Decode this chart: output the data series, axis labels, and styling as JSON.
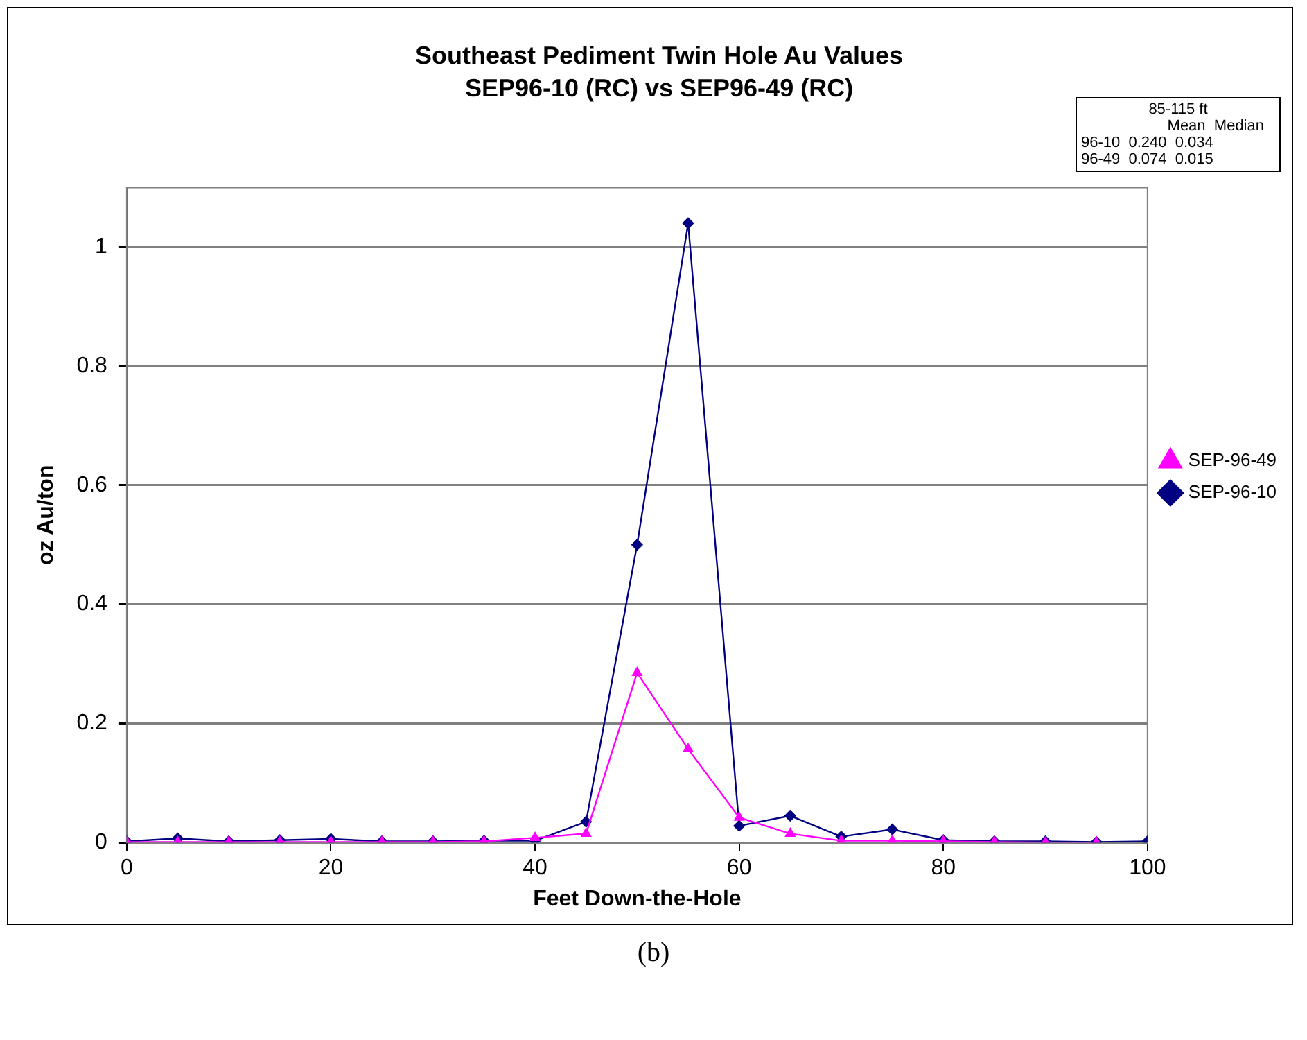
{
  "chart_data": {
    "type": "line",
    "title": "Southeast Pediment Twin Hole Au Values",
    "subtitle": "SEP96-10 (RC) vs SEP96-49 (RC)",
    "xlabel": "Feet Down-the-Hole",
    "ylabel": "oz Au/ton",
    "x": [
      0,
      5,
      10,
      15,
      20,
      25,
      30,
      35,
      40,
      45,
      50,
      55,
      60,
      65,
      70,
      75,
      80,
      85,
      90,
      95,
      100
    ],
    "series": [
      {
        "name": "SEP-96-10",
        "color": "#000080",
        "marker": "diamond",
        "values": [
          0.002,
          0.007,
          0.002,
          0.004,
          0.006,
          0.002,
          0.002,
          0.003,
          0.003,
          0.035,
          0.5,
          1.04,
          0.028,
          0.045,
          0.01,
          0.022,
          0.004,
          0.002,
          0.002,
          0.001,
          0.002
        ]
      },
      {
        "name": "SEP-96-49",
        "color": "#ff00ff",
        "marker": "triangle",
        "x": [
          0,
          5,
          10,
          15,
          20,
          25,
          30,
          35,
          40,
          45,
          50,
          55,
          60,
          65,
          70,
          75,
          80,
          85,
          90,
          95
        ],
        "values": [
          0.001,
          0.001,
          0.001,
          0.001,
          0.001,
          0.001,
          0.001,
          0.002,
          0.008,
          0.015,
          0.285,
          0.157,
          0.042,
          0.015,
          0.003,
          0.003,
          0.002,
          0.001,
          0,
          0
        ]
      }
    ],
    "xlim": [
      0,
      100
    ],
    "xticks": [
      0,
      20,
      40,
      60,
      80,
      100
    ],
    "ylim": [
      0,
      1.1
    ],
    "yticks": [
      0,
      0.2,
      0.4,
      0.6,
      0.8,
      1
    ],
    "grid": "y",
    "legend": "right",
    "line_style": "solid",
    "annotations": [
      "85-115 ft",
      "Mean  Median",
      "96-10  0.240  0.034",
      "96-49  0.074  0.015",
      "(b)"
    ]
  }
}
